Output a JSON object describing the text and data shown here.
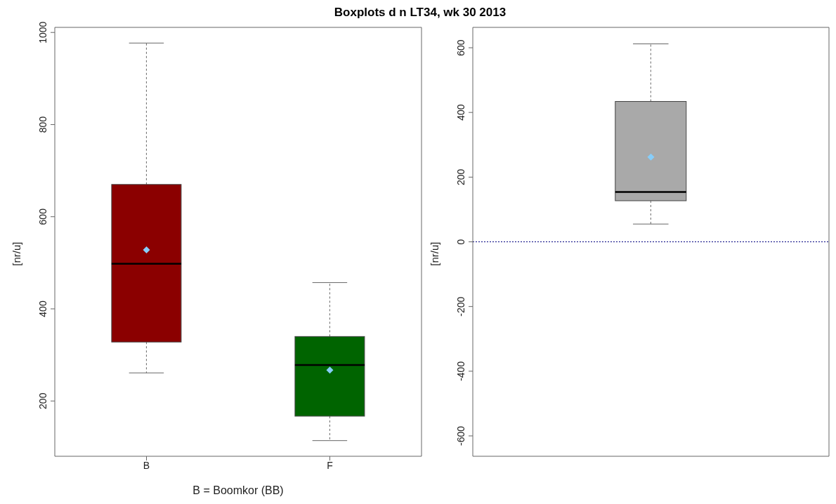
{
  "chart_data": [
    {
      "type": "box",
      "title": "Boxplots d n LT34, wk 30 2013",
      "xlabel": "B = Boomkor (BB)",
      "ylabel": "[nr/u]",
      "categories": [
        "B",
        "F"
      ],
      "colors": [
        "#8b0000",
        "#006400"
      ],
      "boxes": [
        {
          "low": 261,
          "q1": 328,
          "median": 498,
          "q3": 670,
          "high": 977,
          "mean": 528
        },
        {
          "low": 114,
          "q1": 167,
          "median": 278,
          "q3": 340,
          "high": 457,
          "mean": 267
        }
      ],
      "ylim": [
        80,
        1011
      ],
      "yticks": [
        200,
        400,
        600,
        800,
        1000
      ],
      "grid": false
    },
    {
      "type": "box",
      "ylabel": "[nr/u]",
      "categories": [
        null
      ],
      "colors": [
        "#a9a9a9"
      ],
      "boxes": [
        {
          "low": 55,
          "q1": 127,
          "median": 154,
          "q3": 434,
          "high": 612,
          "mean": 262
        }
      ],
      "ylim": [
        -663,
        663
      ],
      "yticks": [
        -600,
        -400,
        -200,
        0,
        200,
        400,
        600
      ],
      "tick_labels": "y",
      "grid": false,
      "ref_lines": [
        {
          "axis": "y",
          "value": 0,
          "color": "#000080",
          "line_style": "dotted"
        }
      ]
    }
  ]
}
